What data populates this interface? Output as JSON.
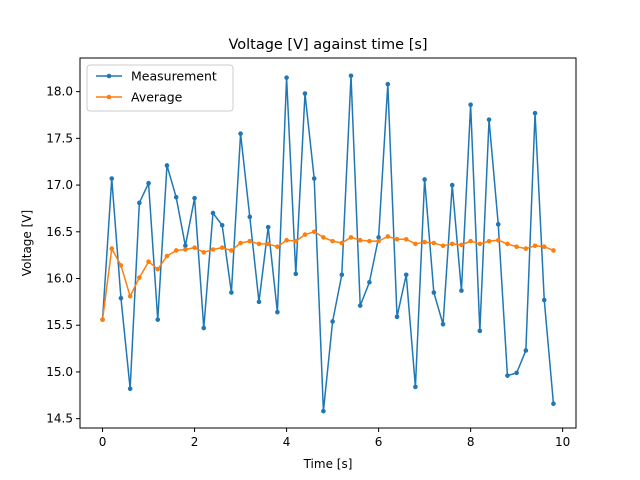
{
  "chart_data": {
    "type": "line",
    "title": "Voltage [V] against time [s]",
    "xlabel": "Time [s]",
    "ylabel": "Voltage [V]",
    "xlim": [
      -0.49,
      10.29
    ],
    "ylim": [
      14.4,
      18.36
    ],
    "xticks": [
      0,
      2,
      4,
      6,
      8,
      10
    ],
    "yticks": [
      14.5,
      15.0,
      15.5,
      16.0,
      16.5,
      17.0,
      17.5,
      18.0
    ],
    "grid": false,
    "legend_position": "top-left",
    "x": [
      0.0,
      0.2,
      0.4,
      0.6,
      0.8,
      1.0,
      1.2,
      1.4,
      1.6,
      1.8,
      2.0,
      2.2,
      2.4,
      2.6,
      2.8,
      3.0,
      3.2,
      3.4,
      3.6,
      3.8,
      4.0,
      4.2,
      4.4,
      4.6,
      4.8,
      5.0,
      5.2,
      5.4,
      5.6,
      5.8,
      6.0,
      6.2,
      6.4,
      6.6,
      6.8,
      7.0,
      7.2,
      7.4,
      7.6,
      7.8,
      8.0,
      8.2,
      8.4,
      8.6,
      8.8,
      9.0,
      9.2,
      9.4,
      9.6,
      9.8
    ],
    "series": [
      {
        "name": "Measurement",
        "color": "#1f77b4",
        "values": [
          15.56,
          17.07,
          15.79,
          14.82,
          16.81,
          17.02,
          15.56,
          17.21,
          16.87,
          16.35,
          16.86,
          15.47,
          16.7,
          16.57,
          15.85,
          17.55,
          16.66,
          15.75,
          16.55,
          15.64,
          18.15,
          16.05,
          17.98,
          17.07,
          14.58,
          15.54,
          16.04,
          18.17,
          15.71,
          15.96,
          16.44,
          18.08,
          15.59,
          16.04,
          14.84,
          17.06,
          15.85,
          15.51,
          17.0,
          15.87,
          17.86,
          15.44,
          17.7,
          16.58,
          14.96,
          14.99,
          15.23,
          17.77,
          15.77,
          14.66
        ]
      },
      {
        "name": "Average",
        "color": "#ff7f0e",
        "values": [
          15.56,
          16.32,
          16.14,
          15.81,
          16.01,
          16.18,
          16.1,
          16.24,
          16.3,
          16.31,
          16.33,
          16.28,
          16.31,
          16.33,
          16.3,
          16.38,
          16.4,
          16.37,
          16.37,
          16.34,
          16.41,
          16.4,
          16.47,
          16.5,
          16.44,
          16.4,
          16.38,
          16.44,
          16.41,
          16.4,
          16.4,
          16.45,
          16.42,
          16.42,
          16.37,
          16.39,
          16.38,
          16.35,
          16.37,
          16.36,
          16.4,
          16.37,
          16.4,
          16.41,
          16.37,
          16.34,
          16.32,
          16.35,
          16.34,
          16.3
        ]
      }
    ]
  }
}
